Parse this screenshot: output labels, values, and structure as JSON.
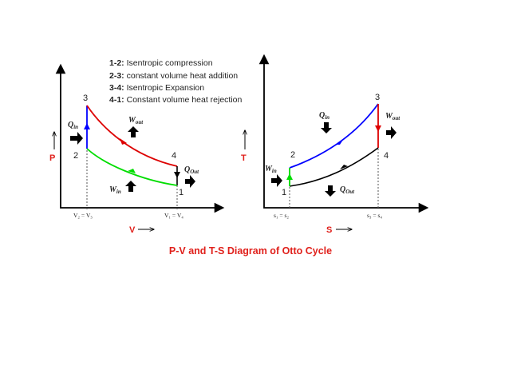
{
  "legend": [
    {
      "key": "1-2:",
      "text": "Isentropic compression"
    },
    {
      "key": "2-3:",
      "text": "constant volume heat addition"
    },
    {
      "key": "3-4:",
      "text": "Isentropic Expansion"
    },
    {
      "key": "4-1:",
      "text": "Constant volume heat rejection"
    }
  ],
  "title": "P-V and T-S Diagram of Otto Cycle",
  "pv": {
    "y_axis": "P",
    "x_axis": "V",
    "points": {
      "p1": "1",
      "p2": "2",
      "p3": "3",
      "p4": "4"
    },
    "ticks": {
      "left": "V₂ = V₃",
      "right": "V₁ = V₄"
    },
    "labels": {
      "q_in": {
        "base": "Q",
        "sub": "in"
      },
      "w_out": {
        "base": "W",
        "sub": "out"
      },
      "q_out": {
        "base": "Q",
        "sub": "Out"
      },
      "w_in": {
        "base": "W",
        "sub": "in"
      }
    }
  },
  "ts": {
    "y_axis": "T",
    "x_axis": "S",
    "points": {
      "p1": "1",
      "p2": "2",
      "p3": "3",
      "p4": "4"
    },
    "ticks": {
      "left": "s₁ = s₂",
      "right": "s₃ = s₄"
    },
    "labels": {
      "q_in": {
        "base": "Q",
        "sub": "in"
      },
      "w_out": {
        "base": "W",
        "sub": "out"
      },
      "w_in": {
        "base": "W",
        "sub": "in"
      },
      "q_out": {
        "base": "Q",
        "sub": "Out"
      }
    }
  },
  "colors": {
    "compression": "#00dd00",
    "heat_addition": "#0000ff",
    "expansion": "#dd0000",
    "heat_rejection": "#000000",
    "axis_label": "#e0201b"
  }
}
